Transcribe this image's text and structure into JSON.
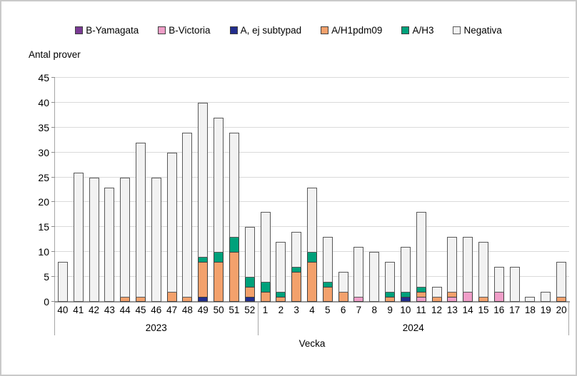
{
  "frame": {
    "background": "#FFFFFF",
    "border_color": "#C9C9C9"
  },
  "chart_data": {
    "type": "bar",
    "stacked": true,
    "title": "Antal prover",
    "xlabel": "Vecka",
    "ylabel": "Antal prover",
    "ylim": [
      0,
      45
    ],
    "ytick_step": 5,
    "grid": "horizontal-only",
    "legend_position": "top-center",
    "axis_color": "#969696",
    "gridline_color": "#DADADA",
    "year_groups": [
      {
        "label": "2023",
        "weeks_count": 13
      },
      {
        "label": "2024",
        "weeks_count": 20
      }
    ],
    "categories": [
      "40",
      "41",
      "42",
      "43",
      "44",
      "45",
      "46",
      "47",
      "48",
      "49",
      "50",
      "51",
      "52",
      "1",
      "2",
      "3",
      "4",
      "5",
      "6",
      "7",
      "8",
      "9",
      "10",
      "11",
      "12",
      "13",
      "14",
      "15",
      "16",
      "17",
      "18",
      "19",
      "20"
    ],
    "series": [
      {
        "name": "B-Yamagata",
        "color": "#7A3A94",
        "border": "#3F3F3F",
        "values": [
          0,
          0,
          0,
          0,
          0,
          0,
          0,
          0,
          0,
          0,
          0,
          0,
          0,
          0,
          0,
          0,
          0,
          0,
          0,
          0,
          0,
          0,
          0,
          0,
          0,
          0,
          0,
          0,
          0,
          0,
          0,
          0,
          0
        ]
      },
      {
        "name": "B-Victoria",
        "color": "#F09EC8",
        "border": "#3F3F3F",
        "values": [
          0,
          0,
          0,
          0,
          0,
          0,
          0,
          0,
          0,
          0,
          0,
          0,
          0,
          0,
          0,
          0,
          0,
          0,
          0,
          1,
          0,
          0,
          0,
          1,
          0,
          1,
          2,
          0,
          2,
          0,
          0,
          0,
          0
        ]
      },
      {
        "name": "A, ej subtypad",
        "color": "#222E8D",
        "border": "#3F3F3F",
        "values": [
          0,
          0,
          0,
          0,
          0,
          0,
          0,
          0,
          0,
          1,
          0,
          0,
          1,
          0,
          0,
          0,
          0,
          0,
          0,
          0,
          0,
          0,
          1,
          0,
          0,
          0,
          0,
          0,
          0,
          0,
          0,
          0,
          0
        ]
      },
      {
        "name": "A/H1pdm09",
        "color": "#F3A16C",
        "border": "#3F3F3F",
        "values": [
          0,
          0,
          0,
          0,
          1,
          1,
          0,
          2,
          1,
          7,
          8,
          10,
          2,
          2,
          1,
          6,
          8,
          3,
          2,
          0,
          0,
          1,
          0,
          1,
          1,
          1,
          0,
          1,
          0,
          0,
          0,
          0,
          1
        ]
      },
      {
        "name": "A/H3",
        "color": "#00A17B",
        "border": "#3F3F3F",
        "values": [
          0,
          0,
          0,
          0,
          0,
          0,
          0,
          0,
          0,
          1,
          2,
          3,
          2,
          2,
          1,
          1,
          2,
          1,
          0,
          0,
          0,
          1,
          1,
          1,
          0,
          0,
          0,
          0,
          0,
          0,
          0,
          0,
          0
        ]
      },
      {
        "name": "Negativa",
        "color": "#F2F2F2",
        "border": "#595959",
        "values": [
          8,
          26,
          25,
          23,
          24,
          31,
          25,
          28,
          33,
          31,
          27,
          21,
          10,
          14,
          10,
          7,
          13,
          9,
          4,
          10,
          10,
          6,
          9,
          15,
          2,
          11,
          11,
          11,
          5,
          7,
          1,
          2,
          7
        ]
      }
    ]
  }
}
